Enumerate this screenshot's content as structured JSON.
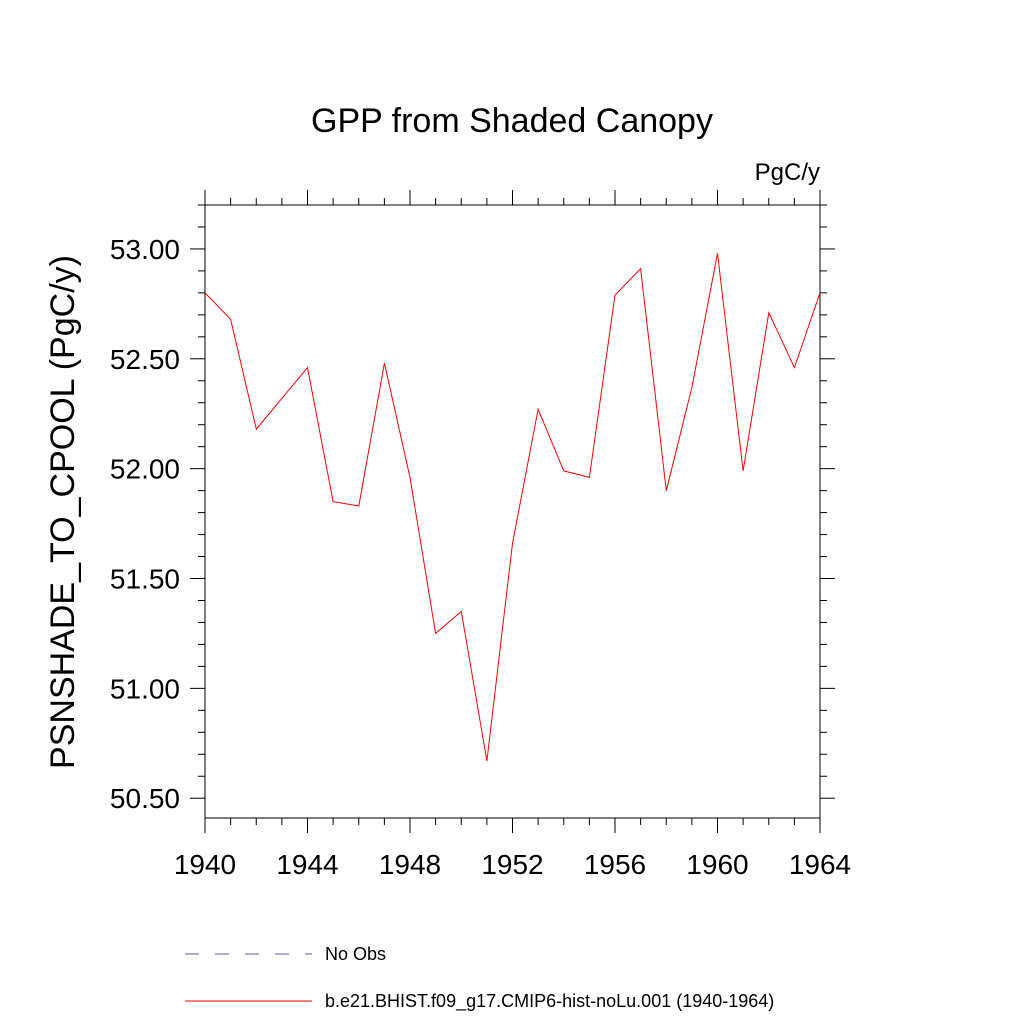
{
  "chart_data": {
    "type": "line",
    "title": "GPP from Shaded Canopy",
    "units_label": "PgC/y",
    "xlabel": "",
    "ylabel": "PSNSHADE_TO_CPOOL  (PgC/y)",
    "xlim": [
      1940,
      1964
    ],
    "ylim": [
      50.41,
      53.2
    ],
    "x_ticks": [
      1940,
      1944,
      1948,
      1952,
      1956,
      1960,
      1964
    ],
    "x_tick_labels": [
      "1940",
      "1944",
      "1948",
      "1952",
      "1956",
      "1960",
      "1964"
    ],
    "y_ticks": [
      50.5,
      51.0,
      51.5,
      52.0,
      52.5,
      53.0
    ],
    "y_tick_labels": [
      "50.50",
      "51.00",
      "51.50",
      "52.00",
      "52.50",
      "53.00"
    ],
    "grid": false,
    "legend_position": "bottom",
    "series": [
      {
        "name": "b.e21.BHIST.f09_g17.CMIP6-hist-noLu.001 (1940-1964)",
        "color": "#ff0000",
        "style": "solid",
        "x": [
          1940,
          1941,
          1942,
          1943,
          1944,
          1945,
          1946,
          1947,
          1948,
          1949,
          1950,
          1951,
          1952,
          1953,
          1954,
          1955,
          1956,
          1957,
          1958,
          1959,
          1960,
          1961,
          1962,
          1963,
          1964
        ],
        "y": [
          52.8,
          52.68,
          52.18,
          52.32,
          52.46,
          51.85,
          51.83,
          52.48,
          51.96,
          51.25,
          51.35,
          50.67,
          51.66,
          52.27,
          51.99,
          51.96,
          52.79,
          52.91,
          51.9,
          52.37,
          52.98,
          51.99,
          52.71,
          52.46,
          52.8
        ]
      }
    ],
    "legend": [
      {
        "label": "No Obs",
        "color": "#5a5aaa",
        "style": "dashed"
      },
      {
        "label": "b.e21.BHIST.f09_g17.CMIP6-hist-noLu.001 (1940-1964)",
        "color": "#ff0000",
        "style": "solid"
      }
    ]
  }
}
